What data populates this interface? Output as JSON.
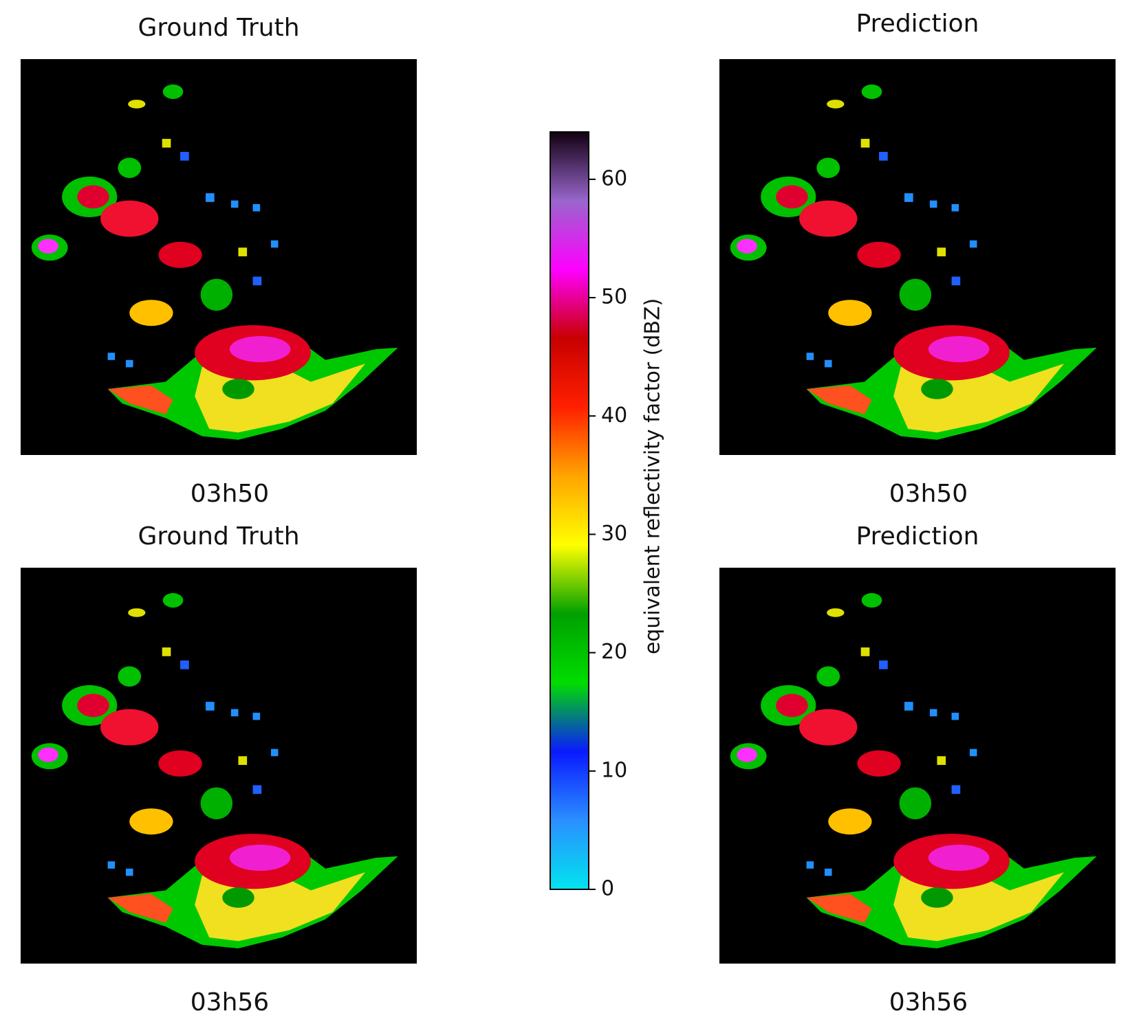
{
  "chart_data": {
    "type": "heatmap",
    "panels": [
      {
        "title": "Ground Truth",
        "time": "03h50"
      },
      {
        "title": "Prediction",
        "time": "03h50"
      },
      {
        "title": "Ground Truth",
        "time": "03h56"
      },
      {
        "title": "Prediction",
        "time": "03h56"
      }
    ],
    "colorbar": {
      "label": "equivalent reflectivity factor (dBZ)",
      "lim": [
        0,
        64
      ],
      "ticks": [
        0,
        10,
        20,
        30,
        40,
        50,
        60
      ],
      "colormap": [
        "#00e5ee",
        "#2a8fff",
        "#0a1aff",
        "#00dd00",
        "#00a000",
        "#ffff00",
        "#ffa500",
        "#ff2000",
        "#c80000",
        "#ff00ff",
        "#9966cc",
        "#110011"
      ]
    }
  }
}
